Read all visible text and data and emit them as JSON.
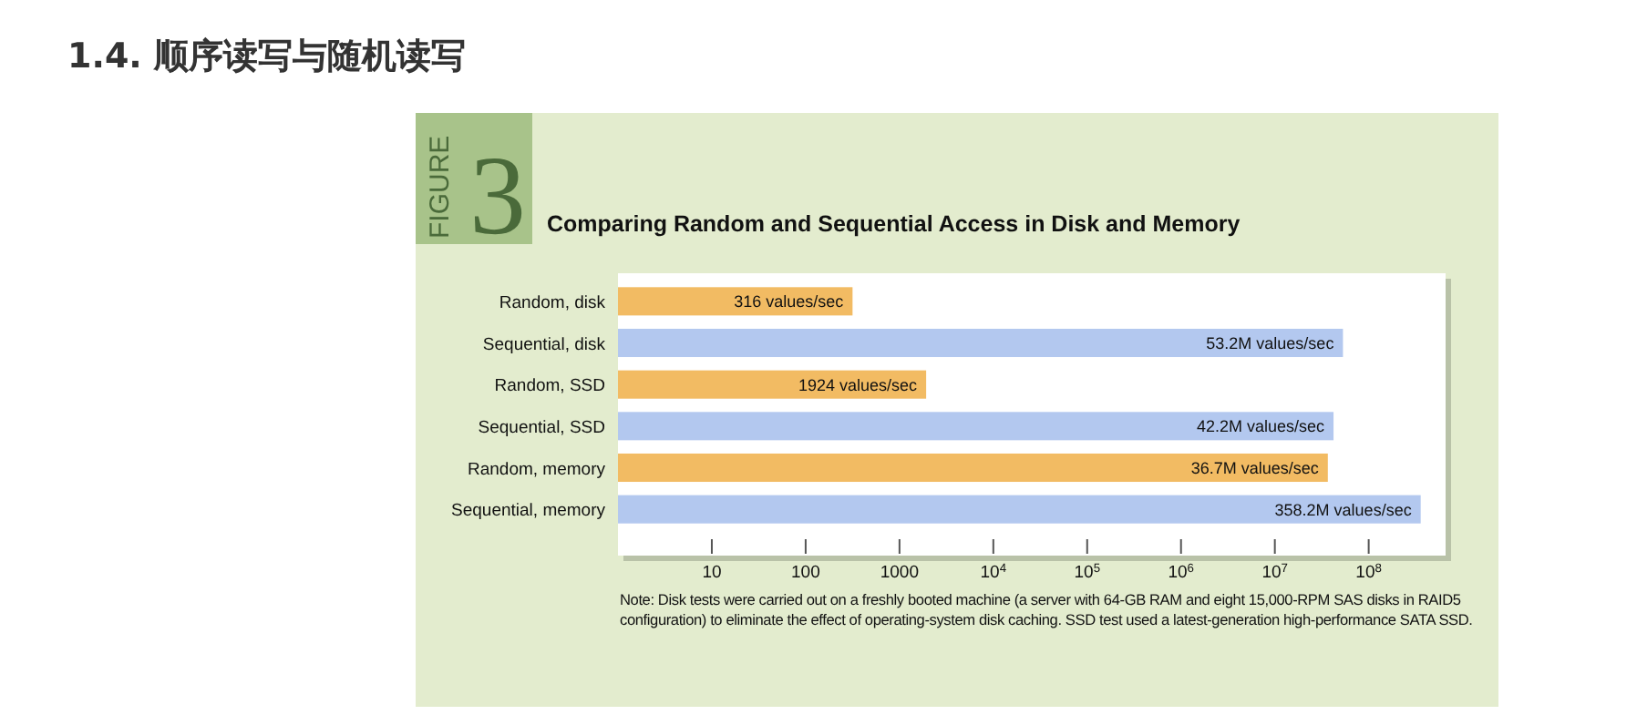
{
  "chart_data": {
    "type": "bar",
    "orientation": "horizontal",
    "title": "Comparing Random and Sequential Access in Disk and Memory",
    "annotations": [
      "1.4. 顺序读写与随机读写",
      "FIGURE",
      "3",
      "Note: Disk tests were carried out on a freshly booted machine (a server with 64-GB RAM and eight 15,000-RPM SAS disks in RAID5 configuration) to eliminate the effect of operating-system disk caching. SSD test used a latest-generation high-performance SATA SSD."
    ],
    "categories": [
      "Random, disk",
      "Sequential, disk",
      "Random, SSD",
      "Sequential, SSD",
      "Random, memory",
      "Sequential, memory"
    ],
    "values": [
      316,
      53200000,
      1924,
      42200000,
      36700000,
      358200000
    ],
    "colors": [
      "#f2bb63",
      "#b3c8ef",
      "#f2bb63",
      "#b3c8ef",
      "#f2bb63",
      "#b3c8ef"
    ],
    "value_labels": [
      "316 values/sec",
      "53.2M values/sec",
      "1924 values/sec",
      "42.2M values/sec",
      "36.7M values/sec",
      "358.2M values/sec"
    ],
    "log": "x",
    "xlim": [
      1,
      660000000
    ],
    "xticks": [
      10,
      100,
      1000,
      {
        "value": 10000,
        "label": "10$^{4}$"
      },
      {
        "value": 100000,
        "label": "10$^{5}$"
      },
      {
        "value": 1000000,
        "label": "10$^{6}$"
      },
      {
        "value": 10000000,
        "label": "10$^{7}$"
      },
      {
        "value": 100000000,
        "label": "10$^{8}$"
      }
    ],
    "grid": false
  }
}
